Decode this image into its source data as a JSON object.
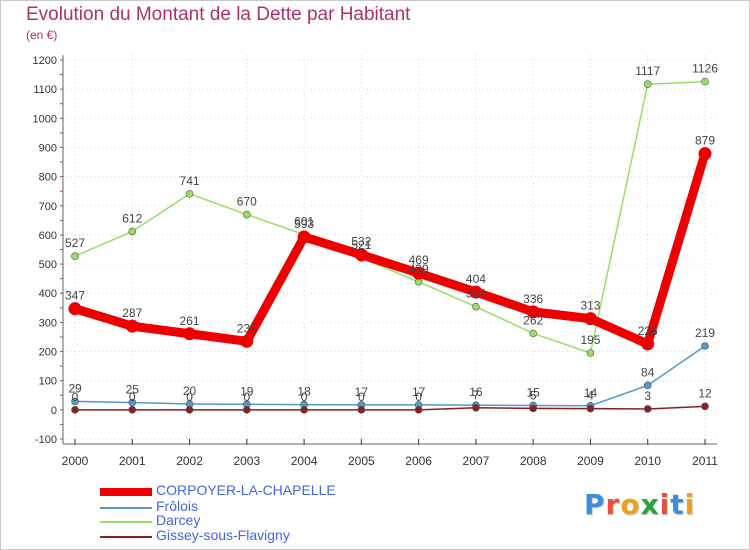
{
  "title": "Evolution du Montant de la Dette par Habitant",
  "subtitle": "(en €)",
  "colors": {
    "title": "#b0306a",
    "legend_text": "#4466dd",
    "grid": "#d8d8d8",
    "axis": "#333333"
  },
  "logo": {
    "text": "Proxiti",
    "letter_colors": [
      "#3a8de0",
      "#e8503a",
      "#f0a020",
      "#2aa040",
      "#e8503a",
      "#3a8de0",
      "#f0a020"
    ]
  },
  "chart_data": {
    "type": "line",
    "title": "Evolution du Montant de la Dette par Habitant",
    "subtitle": "(en €)",
    "x": [
      "2000",
      "2001",
      "2002",
      "2003",
      "2004",
      "2005",
      "2006",
      "2007",
      "2008",
      "2009",
      "2010",
      "2011"
    ],
    "ylim": [
      -100,
      1200
    ],
    "yticks": [
      -100,
      0,
      100,
      200,
      300,
      400,
      500,
      600,
      700,
      800,
      900,
      1000,
      1100,
      1200
    ],
    "grid": true,
    "legend_position": "bottom-left",
    "series": [
      {
        "name": "CORPOYER-LA-CHAPELLE",
        "color": "#ee0000",
        "values": [
          347,
          287,
          261,
          235,
          593,
          532,
          469,
          404,
          336,
          313,
          226,
          879
        ],
        "labels": [
          "347",
          "287",
          "261",
          "235",
          "593",
          "532",
          "469",
          "404",
          "336",
          "313",
          "226",
          "879"
        ]
      },
      {
        "name": "Frôlois",
        "color": "#5599cc",
        "values": [
          29,
          25,
          20,
          19,
          18,
          17,
          17,
          16,
          15,
          14,
          84,
          219
        ],
        "labels": [
          "29",
          "25",
          "20",
          "19",
          "18",
          "17",
          "17",
          "16",
          "15",
          "14",
          "84",
          "219"
        ]
      },
      {
        "name": "Darcey",
        "color": "#99dd66",
        "values": [
          527,
          612,
          741,
          670,
          601,
          521,
          439,
          354,
          262,
          195,
          1117,
          1126
        ],
        "labels": [
          "527",
          "612",
          "741",
          "670",
          "601",
          "521",
          "439",
          "354",
          "262",
          "195",
          "1117",
          "1126"
        ]
      },
      {
        "name": "Gissey-sous-Flavigny",
        "color": "#882222",
        "values": [
          0,
          0,
          0,
          0,
          0,
          0,
          0,
          7,
          5,
          4,
          3,
          12
        ],
        "labels": [
          "0",
          "0",
          "0",
          "0",
          "0",
          "0",
          "0",
          "7",
          "5",
          "4",
          "3",
          "12"
        ]
      }
    ]
  }
}
